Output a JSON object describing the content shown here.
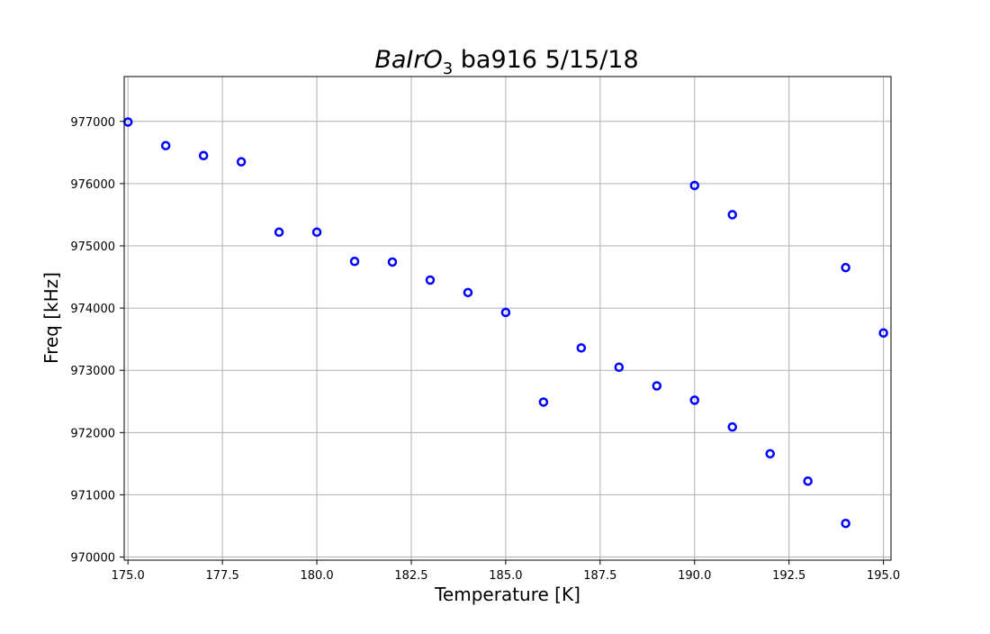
{
  "chart_data": {
    "type": "scatter",
    "title": {
      "formula_main": "BaIrO",
      "formula_sub": "3",
      "rest": " ba916 5/15/18"
    },
    "xlabel": "Temperature [K]",
    "ylabel": "Freq [kHz]",
    "xlim": [
      174.9,
      195.2
    ],
    "ylim": [
      969950,
      977720
    ],
    "x_ticks": [
      175.0,
      177.5,
      180.0,
      182.5,
      185.0,
      187.5,
      190.0,
      192.5,
      195.0
    ],
    "x_tick_labels": [
      "175.0",
      "177.5",
      "180.0",
      "182.5",
      "185.0",
      "187.5",
      "190.0",
      "192.5",
      "195.0"
    ],
    "y_ticks": [
      970000,
      971000,
      972000,
      973000,
      974000,
      975000,
      976000,
      977000
    ],
    "y_tick_labels": [
      "970000",
      "971000",
      "972000",
      "973000",
      "974000",
      "975000",
      "976000",
      "977000"
    ],
    "grid": true,
    "marker": "open-circle",
    "series": [
      {
        "color": "#0000ff",
        "x": [
          175,
          176,
          177,
          178,
          179,
          180,
          181,
          182,
          183,
          184,
          185,
          186,
          187,
          188,
          189,
          190,
          190,
          191,
          191,
          192,
          193,
          194,
          194,
          195
        ],
        "y": [
          976990,
          976610,
          976450,
          976350,
          975220,
          975220,
          974750,
          974740,
          974450,
          974250,
          973930,
          972490,
          973360,
          973050,
          972750,
          975970,
          972520,
          975500,
          972090,
          971660,
          971220,
          974650,
          970540,
          973600
        ]
      }
    ]
  }
}
